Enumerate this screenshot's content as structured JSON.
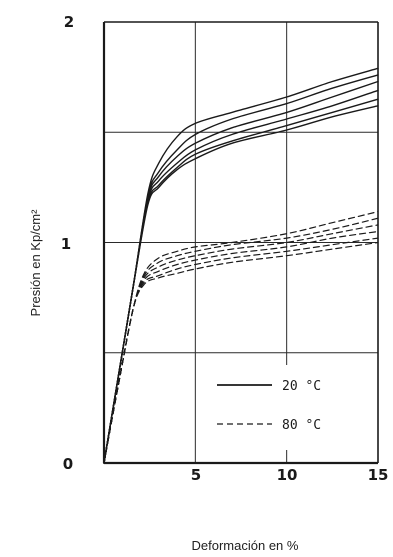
{
  "chart_data": {
    "type": "line",
    "title": "",
    "xlabel": "Deformación en %",
    "ylabel": "Presión en Kp/cm²",
    "xlim": [
      0,
      15
    ],
    "ylim": [
      0,
      2
    ],
    "x_ticks": [
      "5",
      "10",
      "15"
    ],
    "y_ticks": [
      "0",
      "1",
      "2"
    ],
    "grid": true,
    "legend_position": "bottom-right",
    "legend": [
      {
        "label": "20 °C",
        "style": "solid"
      },
      {
        "label": "80 °C",
        "style": "dashed"
      }
    ],
    "series": [
      {
        "group": "20 °C",
        "style": "solid",
        "x": [
          0,
          0.8,
          1.6,
          2.4,
          3,
          4,
          5,
          7,
          10,
          12.5,
          15
        ],
        "y": [
          0,
          0.4,
          0.8,
          1.22,
          1.36,
          1.48,
          1.54,
          1.59,
          1.66,
          1.73,
          1.79
        ]
      },
      {
        "group": "20 °C",
        "style": "solid",
        "x": [
          0,
          0.8,
          1.6,
          2.4,
          3,
          4,
          5,
          7,
          10,
          12.5,
          15
        ],
        "y": [
          0,
          0.4,
          0.8,
          1.21,
          1.32,
          1.42,
          1.49,
          1.56,
          1.63,
          1.7,
          1.76
        ]
      },
      {
        "group": "20 °C",
        "style": "solid",
        "x": [
          0,
          0.8,
          1.6,
          2.4,
          3,
          4,
          5,
          7,
          10,
          12.5,
          15
        ],
        "y": [
          0,
          0.4,
          0.8,
          1.2,
          1.3,
          1.39,
          1.45,
          1.52,
          1.59,
          1.66,
          1.73
        ]
      },
      {
        "group": "20 °C",
        "style": "solid",
        "x": [
          0,
          0.8,
          1.6,
          2.4,
          3,
          4,
          5,
          7,
          10,
          12.5,
          15
        ],
        "y": [
          0,
          0.4,
          0.8,
          1.19,
          1.28,
          1.36,
          1.42,
          1.49,
          1.56,
          1.62,
          1.69
        ]
      },
      {
        "group": "20 °C",
        "style": "solid",
        "x": [
          0,
          0.8,
          1.6,
          2.4,
          3,
          4,
          5,
          7,
          10,
          12.5,
          15
        ],
        "y": [
          0,
          0.4,
          0.8,
          1.18,
          1.26,
          1.34,
          1.4,
          1.46,
          1.53,
          1.59,
          1.65
        ]
      },
      {
        "group": "20 °C",
        "style": "solid",
        "x": [
          0,
          0.8,
          1.6,
          2.4,
          3,
          4,
          5,
          7,
          10,
          12.5,
          15
        ],
        "y": [
          0,
          0.4,
          0.8,
          1.17,
          1.25,
          1.33,
          1.38,
          1.45,
          1.51,
          1.57,
          1.62
        ]
      },
      {
        "group": "80 °C",
        "style": "dashed",
        "x": [
          0,
          0.8,
          1.6,
          2.2,
          3,
          4,
          5,
          7,
          10,
          12.5,
          15
        ],
        "y": [
          0,
          0.36,
          0.7,
          0.86,
          0.93,
          0.96,
          0.98,
          1.0,
          1.04,
          1.09,
          1.14
        ]
      },
      {
        "group": "80 °C",
        "style": "dashed",
        "x": [
          0,
          0.8,
          1.6,
          2.2,
          3,
          4,
          5,
          7,
          10,
          12.5,
          15
        ],
        "y": [
          0,
          0.36,
          0.7,
          0.85,
          0.91,
          0.94,
          0.96,
          0.99,
          1.02,
          1.06,
          1.11
        ]
      },
      {
        "group": "80 °C",
        "style": "dashed",
        "x": [
          0,
          0.8,
          1.6,
          2.2,
          3,
          4,
          5,
          7,
          10,
          12.5,
          15
        ],
        "y": [
          0,
          0.36,
          0.7,
          0.84,
          0.89,
          0.92,
          0.94,
          0.97,
          1.0,
          1.04,
          1.08
        ]
      },
      {
        "group": "80 °C",
        "style": "dashed",
        "x": [
          0,
          0.8,
          1.6,
          2.2,
          3,
          4,
          5,
          7,
          10,
          12.5,
          15
        ],
        "y": [
          0,
          0.36,
          0.7,
          0.83,
          0.87,
          0.9,
          0.92,
          0.95,
          0.98,
          1.02,
          1.05
        ]
      },
      {
        "group": "80 °C",
        "style": "dashed",
        "x": [
          0,
          0.8,
          1.6,
          2.2,
          3,
          4,
          5,
          7,
          10,
          12.5,
          15
        ],
        "y": [
          0,
          0.36,
          0.7,
          0.82,
          0.85,
          0.88,
          0.9,
          0.93,
          0.96,
          0.99,
          1.02
        ]
      },
      {
        "group": "80 °C",
        "style": "dashed",
        "x": [
          0,
          0.8,
          1.6,
          2.2,
          3,
          4,
          5,
          7,
          10,
          12.5,
          15
        ],
        "y": [
          0,
          0.36,
          0.7,
          0.81,
          0.84,
          0.86,
          0.88,
          0.91,
          0.94,
          0.97,
          1.0
        ]
      }
    ],
    "colors": {
      "ink": "#1a1a1a",
      "grid": "#2a2a2a",
      "background": "#ffffff"
    }
  }
}
